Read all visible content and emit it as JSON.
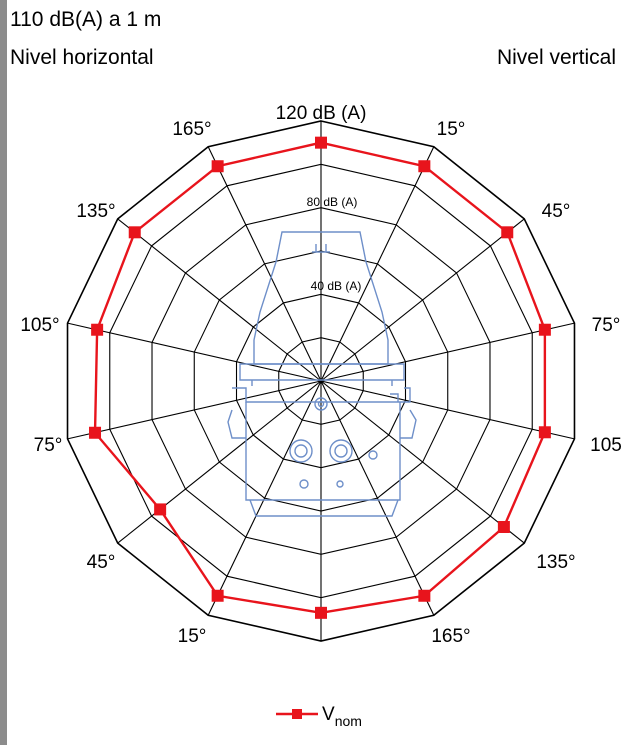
{
  "header": {
    "spec": "110 dB(A) a 1 m",
    "left_title": "Nivel horizontal",
    "right_title": "Nivel vertical"
  },
  "chart_data": {
    "type": "polar-line",
    "r_unit": "dB (A)",
    "r_range": [
      0,
      120
    ],
    "r_outer_label": "120 dB (A)",
    "r_inner_labels": [
      {
        "label": "80 dB (A)",
        "r": 80
      },
      {
        "label": "40 dB (A)",
        "r": 40
      }
    ],
    "ring_values": [
      20,
      40,
      60,
      80,
      100,
      120
    ],
    "spokes": 14,
    "angle_labels": [
      "15°",
      "45°",
      "75°",
      "105",
      "135°",
      "165°",
      "165°",
      "15°",
      "45°",
      "75°",
      "105°",
      "135°",
      "165°",
      "120 dB (A)"
    ],
    "grid": true,
    "legend_position": "bottom-center",
    "colors": {
      "series": "#e8141c",
      "grid": "#000000",
      "device": "#6e8fc9"
    },
    "series": [
      {
        "name": "V",
        "name_sub": "nom",
        "points": [
          {
            "angle_deg": 0,
            "r": 110
          },
          {
            "angle_deg": 25.7,
            "r": 110
          },
          {
            "angle_deg": 51.4,
            "r": 110
          },
          {
            "angle_deg": 77.1,
            "r": 106
          },
          {
            "angle_deg": 102.9,
            "r": 106
          },
          {
            "angle_deg": 128.6,
            "r": 108
          },
          {
            "angle_deg": 154.3,
            "r": 110
          },
          {
            "angle_deg": 180,
            "r": 107
          },
          {
            "angle_deg": 205.7,
            "r": 110
          },
          {
            "angle_deg": 231.4,
            "r": 95
          },
          {
            "angle_deg": 257.1,
            "r": 107
          },
          {
            "angle_deg": 282.9,
            "r": 106
          },
          {
            "angle_deg": 308.6,
            "r": 110
          },
          {
            "angle_deg": 334.3,
            "r": 110
          }
        ]
      }
    ]
  }
}
